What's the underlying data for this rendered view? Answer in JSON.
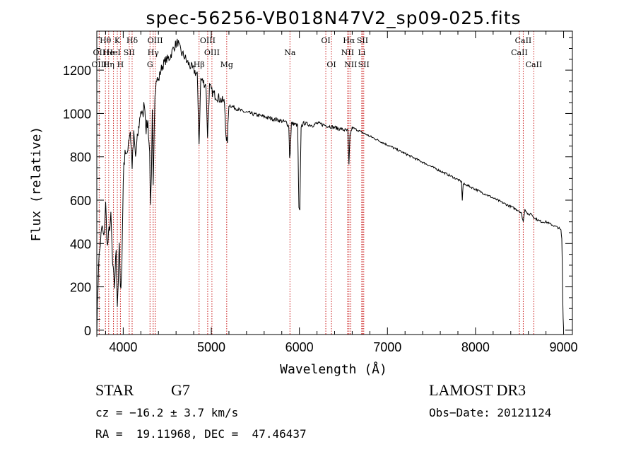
{
  "chart_data": {
    "type": "line",
    "title": "spec-56256-VB018N47V2_sp09-025.fits",
    "xlabel": "Wavelength (Å)",
    "ylabel": "Flux (relative)",
    "xlim": [
      3700,
      9100
    ],
    "ylim": [
      -20,
      1380
    ],
    "xticks": [
      4000,
      5000,
      6000,
      7000,
      8000,
      9000
    ],
    "yticks": [
      0,
      200,
      400,
      600,
      800,
      1000,
      1200
    ],
    "grid": false,
    "legend": "none",
    "series": [
      {
        "name": "flux",
        "x": [
          3700,
          3720,
          3740,
          3760,
          3780,
          3800,
          3820,
          3840,
          3860,
          3880,
          3900,
          3920,
          3933,
          3945,
          3955,
          3968,
          3985,
          4000,
          4020,
          4040,
          4060,
          4080,
          4101,
          4120,
          4140,
          4160,
          4180,
          4200,
          4220,
          4240,
          4260,
          4280,
          4300,
          4310,
          4320,
          4330,
          4340,
          4360,
          4380,
          4400,
          4420,
          4440,
          4460,
          4480,
          4500,
          4520,
          4540,
          4560,
          4580,
          4600,
          4620,
          4640,
          4660,
          4680,
          4700,
          4720,
          4740,
          4760,
          4780,
          4800,
          4820,
          4840,
          4861,
          4880,
          4900,
          4920,
          4940,
          4957,
          4980,
          5007,
          5030,
          5060,
          5090,
          5120,
          5150,
          5172,
          5183,
          5200,
          5250,
          5300,
          5350,
          5400,
          5450,
          5500,
          5550,
          5600,
          5650,
          5700,
          5750,
          5800,
          5850,
          5880,
          5889,
          5896,
          5910,
          5950,
          5980,
          5995,
          6005,
          6020,
          6050,
          6100,
          6150,
          6200,
          6250,
          6300,
          6350,
          6400,
          6450,
          6500,
          6550,
          6563,
          6575,
          6600,
          6650,
          6700,
          6750,
          6800,
          6850,
          6900,
          6950,
          7000,
          7050,
          7100,
          7150,
          7200,
          7250,
          7300,
          7350,
          7400,
          7450,
          7500,
          7550,
          7600,
          7650,
          7700,
          7750,
          7800,
          7840,
          7850,
          7860,
          7900,
          7950,
          8000,
          8050,
          8100,
          8150,
          8200,
          8250,
          8300,
          8350,
          8400,
          8450,
          8498,
          8520,
          8542,
          8560,
          8600,
          8630,
          8662,
          8700,
          8750,
          8800,
          8850,
          8900,
          8950,
          8970,
          8980,
          8985,
          8990,
          8995,
          9000
        ],
        "values": [
          0,
          310,
          400,
          480,
          420,
          580,
          380,
          460,
          520,
          300,
          200,
          380,
          120,
          240,
          400,
          180,
          300,
          700,
          840,
          790,
          880,
          920,
          760,
          900,
          800,
          880,
          950,
          1020,
          980,
          1060,
          930,
          960,
          820,
          560,
          700,
          1000,
          680,
          1100,
          1160,
          1150,
          1190,
          1215,
          1230,
          1245,
          1250,
          1255,
          1270,
          1290,
          1310,
          1320,
          1330,
          1300,
          1280,
          1270,
          1260,
          1240,
          1230,
          1220,
          1210,
          1200,
          1190,
          1180,
          860,
          1160,
          1150,
          1140,
          1130,
          900,
          1125,
          1100,
          1090,
          1080,
          1070,
          1060,
          1050,
          860,
          880,
          1040,
          1030,
          1020,
          1010,
          1005,
          1000,
          995,
          990,
          985,
          980,
          975,
          970,
          965,
          960,
          940,
          800,
          820,
          955,
          950,
          945,
          560,
          550,
          940,
          955,
          950,
          945,
          955,
          950,
          945,
          940,
          935,
          930,
          925,
          920,
          760,
          900,
          935,
          925,
          915,
          905,
          895,
          885,
          875,
          865,
          855,
          845,
          835,
          825,
          815,
          805,
          795,
          785,
          775,
          765,
          755,
          745,
          735,
          725,
          715,
          705,
          695,
          685,
          600,
          675,
          670,
          660,
          650,
          640,
          630,
          620,
          610,
          600,
          590,
          580,
          570,
          560,
          550,
          540,
          500,
          560,
          530,
          540,
          520,
          510,
          500,
          500,
          490,
          480,
          470,
          460,
          420,
          300,
          150,
          60,
          10
        ]
      }
    ],
    "spectral_lines": [
      {
        "label": "Hθ",
        "wl": 3798,
        "row": 0
      },
      {
        "label": "OII",
        "wl": 3727,
        "row": 1
      },
      {
        "label": "OIII",
        "wl": 3727,
        "row": 2
      },
      {
        "label": "He",
        "wl": 3835,
        "row": 1
      },
      {
        "label": "Hη",
        "wl": 3835,
        "row": 2
      },
      {
        "label": "K",
        "wl": 3933,
        "row": 0
      },
      {
        "label": "HeI",
        "wl": 3889,
        "row": 1
      },
      {
        "label": "SII",
        "wl": 4068,
        "row": 1
      },
      {
        "label": "H",
        "wl": 3968,
        "row": 2
      },
      {
        "label": "Hδ",
        "wl": 4101,
        "row": 0
      },
      {
        "label": "OIII",
        "wl": 4363,
        "row": 0
      },
      {
        "label": "Hγ",
        "wl": 4340,
        "row": 1
      },
      {
        "label": "G",
        "wl": 4304,
        "row": 2
      },
      {
        "label": "OIII",
        "wl": 4959,
        "row": 0
      },
      {
        "label": "OIII",
        "wl": 5007,
        "row": 1
      },
      {
        "label": "Hβ",
        "wl": 4861,
        "row": 2
      },
      {
        "label": "Mg",
        "wl": 5175,
        "row": 2
      },
      {
        "label": "Na",
        "wl": 5893,
        "row": 1
      },
      {
        "label": "OI",
        "wl": 6300,
        "row": 0
      },
      {
        "label": "OI",
        "wl": 6364,
        "row": 2
      },
      {
        "label": "Hα",
        "wl": 6563,
        "row": 0
      },
      {
        "label": "SII",
        "wl": 6717,
        "row": 0
      },
      {
        "label": "NII",
        "wl": 6548,
        "row": 1
      },
      {
        "label": "Li",
        "wl": 6708,
        "row": 1
      },
      {
        "label": "NII",
        "wl": 6583,
        "row": 2
      },
      {
        "label": "SII",
        "wl": 6731,
        "row": 2
      },
      {
        "label": "CaII",
        "wl": 8542,
        "row": 0
      },
      {
        "label": "CaII",
        "wl": 8498,
        "row": 1
      },
      {
        "label": "CaII",
        "wl": 8662,
        "row": 2
      }
    ],
    "line_colors": {
      "spectrum": "#000000",
      "markers": "#cc2222",
      "axes": "#000000"
    }
  },
  "info": {
    "object_class": "STAR",
    "subclass": "G7",
    "survey": "LAMOST DR3",
    "cz": "cz = −16.2 ± 3.7 km/s",
    "obs_date": "Obs−Date: 20121124",
    "coords": "RA =  19.11968, DEC =  47.46437"
  }
}
